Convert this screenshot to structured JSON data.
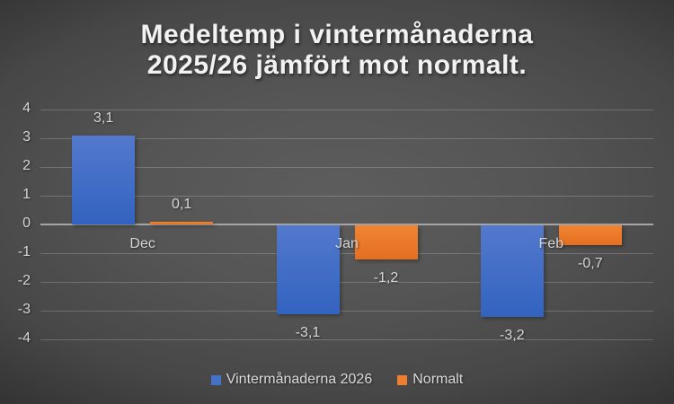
{
  "title": {
    "line1": "Medeltemp i vintermånaderna",
    "line2": "2025/26 jämfört mot normalt."
  },
  "chart_data": {
    "type": "bar",
    "title": "Medeltemp i vintermånaderna 2025/26 jämfört mot normalt.",
    "categories": [
      "Dec",
      "Jan",
      "Feb"
    ],
    "series": [
      {
        "name": "Vintermånaderna 2026",
        "values": [
          3.1,
          -3.1,
          -3.2
        ],
        "labels": [
          "3,1",
          "-3,1",
          "-3,2"
        ],
        "color": "#4472C4"
      },
      {
        "name": "Normalt",
        "values": [
          0.1,
          -1.2,
          -0.7
        ],
        "labels": [
          "0,1",
          "-1,2",
          "-0,7"
        ],
        "color": "#ED7D31"
      }
    ],
    "xlabel": "",
    "ylabel": "",
    "ylim": [
      -4,
      4
    ],
    "yticks": [
      4,
      3,
      2,
      1,
      0,
      -1,
      -2,
      -3,
      -4
    ],
    "grid": true,
    "legend_position": "bottom",
    "number_format": "comma-decimal"
  },
  "legend": {
    "items": [
      {
        "label": "Vintermånaderna 2026",
        "color": "#4472C4"
      },
      {
        "label": "Normalt",
        "color": "#ED7D31"
      }
    ]
  },
  "colors": {
    "series1": "#4472C4",
    "series2": "#ED7D31",
    "background_center": "#5d5d5d",
    "background_edge": "#252525",
    "gridline": "rgba(255,255,255,0.20)",
    "zero_line": "#a6a6a6",
    "label_text": "#d6d6d6",
    "title_text": "#f2f2f2"
  }
}
